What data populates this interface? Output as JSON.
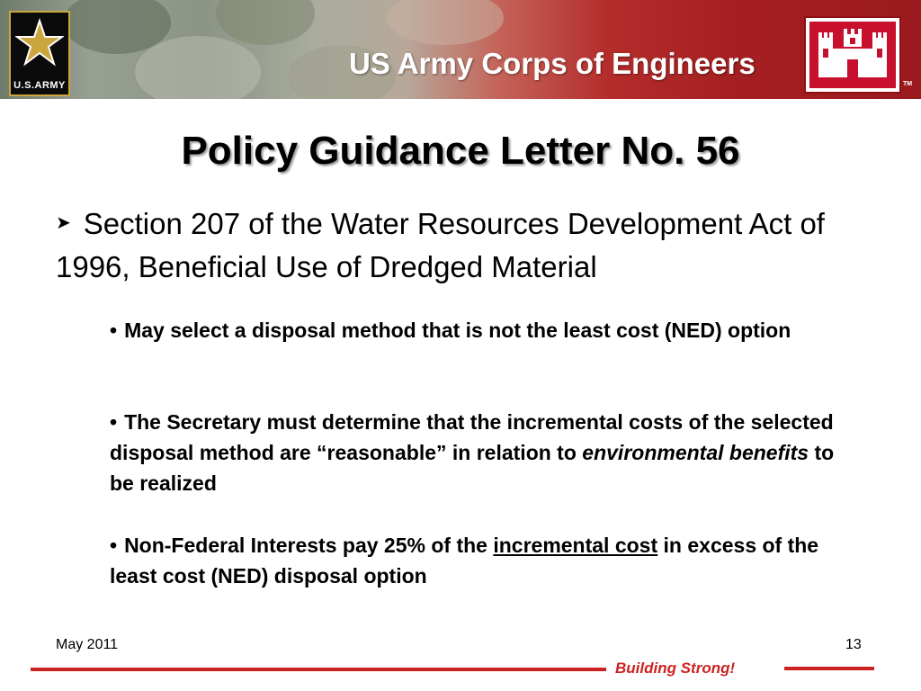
{
  "header": {
    "army_logo_text": "U.S.ARMY",
    "org_name": "US Army Corps of Engineers",
    "trademark": "TM"
  },
  "slide": {
    "title": "Policy Guidance Letter  No. 56",
    "main_point": "Section 207 of the Water Resources Development Act of 1996, Beneficial Use of Dredged Material",
    "bullets": [
      {
        "text": "May select a disposal method that is not the least cost (NED) option"
      },
      {
        "text_before": "The Secretary must determine that the incremental costs of the selected disposal method are “reasonable” in relation to ",
        "italic": "environmental benefits",
        "text_after": " to be realized"
      },
      {
        "text_before": "Non-Federal Interests pay 25% of the ",
        "underline": "incremental cost",
        "text_after": " in excess of the least cost (NED) disposal option"
      }
    ]
  },
  "footer": {
    "date": "May 2011",
    "page_number": "13",
    "tagline": "Building Strong!"
  },
  "colors": {
    "accent_red": "#cc2222",
    "banner_red": "#a51f22",
    "army_gold": "#caa63d"
  }
}
